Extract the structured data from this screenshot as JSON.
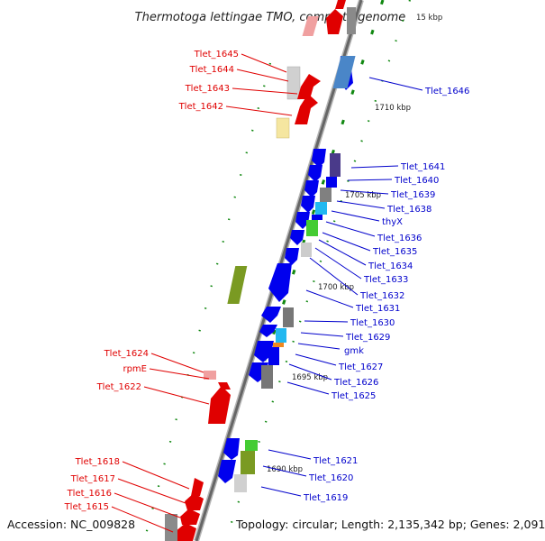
{
  "title": "Thermotoga lettingae TMO, complete genome",
  "accession": "Accession: NC_009828",
  "summary": "Topology: circular; Length: 2,135,342 bp; Genes: 2,091",
  "scale_labels": [
    {
      "id": "kbp-1715",
      "text": "15 kbp"
    },
    {
      "id": "kbp-1710",
      "text": "1710 kbp"
    },
    {
      "id": "kbp-1705",
      "text": "1705 kbp"
    },
    {
      "id": "kbp-1700",
      "text": "1700 kbp"
    },
    {
      "id": "kbp-1695",
      "text": "1695 kbp"
    },
    {
      "id": "kbp-1690",
      "text": "1690 kbp"
    }
  ],
  "genes_reverse": [
    {
      "id": "g1645",
      "label": "Tlet_1645"
    },
    {
      "id": "g1644",
      "label": "Tlet_1644"
    },
    {
      "id": "g1643",
      "label": "Tlet_1643"
    },
    {
      "id": "g1642",
      "label": "Tlet_1642"
    },
    {
      "id": "g1624",
      "label": "Tlet_1624"
    },
    {
      "id": "grpmE",
      "label": "rpmE"
    },
    {
      "id": "g1622",
      "label": "Tlet_1622"
    },
    {
      "id": "g1618",
      "label": "Tlet_1618"
    },
    {
      "id": "g1617",
      "label": "Tlet_1617"
    },
    {
      "id": "g1616",
      "label": "Tlet_1616"
    },
    {
      "id": "g1615",
      "label": "Tlet_1615"
    }
  ],
  "genes_forward": [
    {
      "id": "g1646",
      "label": "Tlet_1646"
    },
    {
      "id": "g1641",
      "label": "Tlet_1641"
    },
    {
      "id": "g1640",
      "label": "Tlet_1640"
    },
    {
      "id": "g1639",
      "label": "Tlet_1639"
    },
    {
      "id": "g1638",
      "label": "Tlet_1638"
    },
    {
      "id": "gthyX",
      "label": "thyX"
    },
    {
      "id": "g1636",
      "label": "Tlet_1636"
    },
    {
      "id": "g1635",
      "label": "Tlet_1635"
    },
    {
      "id": "g1634",
      "label": "Tlet_1634"
    },
    {
      "id": "g1633",
      "label": "Tlet_1633"
    },
    {
      "id": "g1632",
      "label": "Tlet_1632"
    },
    {
      "id": "g1631",
      "label": "Tlet_1631"
    },
    {
      "id": "g1630",
      "label": "Tlet_1630"
    },
    {
      "id": "g1629",
      "label": "Tlet_1629"
    },
    {
      "id": "ggmk",
      "label": "gmk"
    },
    {
      "id": "g1627",
      "label": "Tlet_1627"
    },
    {
      "id": "g1626",
      "label": "Tlet_1626"
    },
    {
      "id": "g1625",
      "label": "Tlet_1625"
    },
    {
      "id": "g1621",
      "label": "Tlet_1621"
    },
    {
      "id": "g1620",
      "label": "Tlet_1620"
    },
    {
      "id": "g1619",
      "label": "Tlet_1619"
    }
  ],
  "colors": {
    "reverse_strand": "#ee0000",
    "forward_strand": "#0000ee",
    "backbone": "#888888",
    "gc_skew": "#118811"
  }
}
